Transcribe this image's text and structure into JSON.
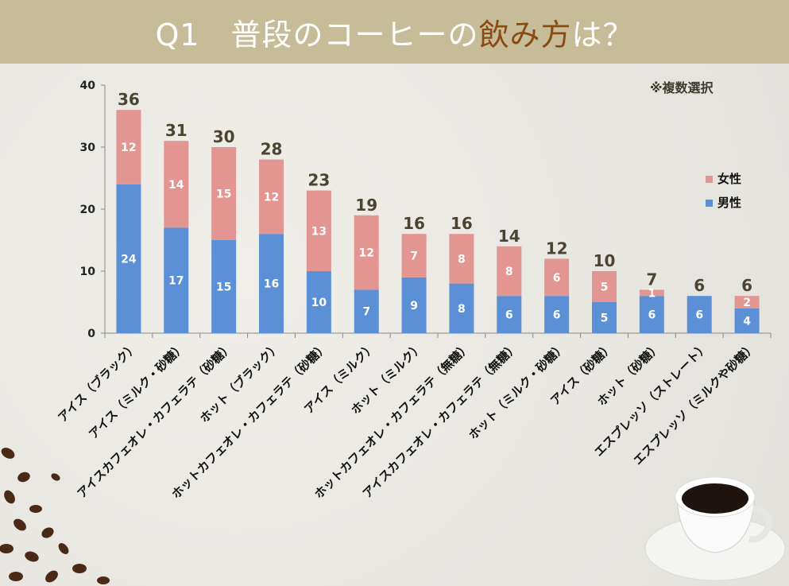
{
  "header": {
    "title_prefix": "Q1　普段のコーヒーの",
    "title_highlight": "飲み方",
    "title_suffix": "は？"
  },
  "note": "※複数選択",
  "colors": {
    "male": "#5b8fd6",
    "female": "#e29591",
    "header_bg": "#c6bd98",
    "highlight": "#8a4a14"
  },
  "chart_data": {
    "type": "bar",
    "stacked": true,
    "title": "Q1 普段のコーヒーの飲み方は？",
    "categories": [
      "アイス（ブラック）",
      "アイス（ミルク・砂糖）",
      "アイスカフェオレ・カフェラテ（砂糖）",
      "ホット（ブラック）",
      "ホットカフェオレ・カフェラテ（砂糖）",
      "アイス（ミルク）",
      "ホット（ミルク）",
      "ホットカフェオレ・カフェラテ（無糖）",
      "アイスカフェオレ・カフェラテ（無糖）",
      "ホット（ミルク・砂糖）",
      "アイス（砂糖）",
      "ホット（砂糖）",
      "エスプレッソ（ストレート）",
      "エスプレッソ（ミルクや砂糖）"
    ],
    "series": [
      {
        "name": "男性",
        "values": [
          24,
          17,
          15,
          16,
          10,
          7,
          9,
          8,
          6,
          6,
          5,
          6,
          6,
          4
        ]
      },
      {
        "name": "女性",
        "values": [
          12,
          14,
          15,
          12,
          13,
          12,
          7,
          8,
          8,
          6,
          5,
          1,
          0,
          2
        ]
      }
    ],
    "totals": [
      36,
      31,
      30,
      28,
      23,
      19,
      16,
      16,
      14,
      12,
      10,
      7,
      6,
      6
    ],
    "yticks": [
      0,
      10,
      20,
      30,
      40
    ],
    "ylim": [
      0,
      40
    ],
    "legend": [
      "女性",
      "男性"
    ],
    "legend_position": "right",
    "grid": false
  }
}
